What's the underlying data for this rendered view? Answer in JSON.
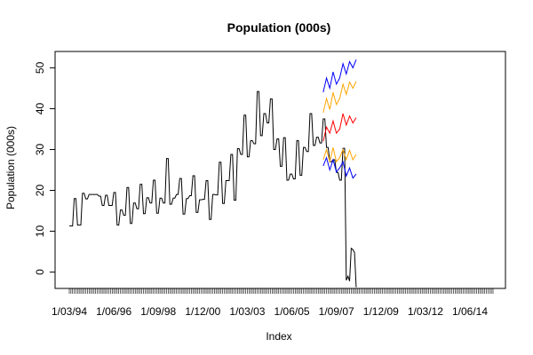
{
  "chart_data": {
    "type": "line",
    "title": "Population (000s)",
    "xlabel": "Index",
    "ylabel": "Population (000s)",
    "ylim": [
      -4,
      54
    ],
    "y_ticks": [
      0,
      10,
      20,
      30,
      40,
      50
    ],
    "x_ticks": [
      {
        "label": "1/03/94",
        "index": 1
      },
      {
        "label": "1/06/96",
        "index": 28
      },
      {
        "label": "1/09/98",
        "index": 55
      },
      {
        "label": "1/12/00",
        "index": 82
      },
      {
        "label": "1/03/03",
        "index": 109
      },
      {
        "label": "1/06/05",
        "index": 136
      },
      {
        "label": "1/09/07",
        "index": 163
      },
      {
        "label": "1/12/09",
        "index": 190
      },
      {
        "label": "1/03/12",
        "index": 217
      },
      {
        "label": "1/06/14",
        "index": 244
      }
    ],
    "x_range": [
      1,
      258
    ],
    "grid": false,
    "series": [
      {
        "color": "#000000",
        "points": [
          [
            1,
            11.3
          ],
          [
            2,
            11.3
          ],
          [
            3,
            11.3
          ],
          [
            4,
            18.0
          ],
          [
            5,
            18.0
          ],
          [
            6,
            11.5
          ],
          [
            7,
            11.5
          ],
          [
            8,
            11.5
          ],
          [
            9,
            19.3
          ],
          [
            10,
            19.3
          ],
          [
            11,
            17.9
          ],
          [
            12,
            17.9
          ],
          [
            13,
            19.0
          ],
          [
            14,
            19.0
          ],
          [
            15,
            19.0
          ],
          [
            16,
            19.0
          ],
          [
            17,
            19.0
          ],
          [
            18,
            19.0
          ],
          [
            19,
            18.6
          ],
          [
            20,
            18.6
          ],
          [
            21,
            16.3
          ],
          [
            22,
            16.3
          ],
          [
            23,
            18.8
          ],
          [
            24,
            18.8
          ],
          [
            25,
            16.3
          ],
          [
            26,
            16.3
          ],
          [
            27,
            16.3
          ],
          [
            28,
            19.5
          ],
          [
            29,
            19.5
          ],
          [
            30,
            11.5
          ],
          [
            31,
            11.5
          ],
          [
            32,
            15.2
          ],
          [
            33,
            15.2
          ],
          [
            34,
            13.9
          ],
          [
            35,
            13.9
          ],
          [
            36,
            20.7
          ],
          [
            37,
            20.7
          ],
          [
            38,
            11.9
          ],
          [
            39,
            11.9
          ],
          [
            40,
            16.9
          ],
          [
            41,
            16.9
          ],
          [
            42,
            15.5
          ],
          [
            43,
            15.5
          ],
          [
            44,
            21.5
          ],
          [
            45,
            21.5
          ],
          [
            46,
            14.3
          ],
          [
            47,
            14.3
          ],
          [
            48,
            18.2
          ],
          [
            49,
            18.2
          ],
          [
            50,
            16.9
          ],
          [
            51,
            16.9
          ],
          [
            52,
            22.5
          ],
          [
            53,
            22.5
          ],
          [
            54,
            14.4
          ],
          [
            55,
            14.4
          ],
          [
            56,
            18.1
          ],
          [
            57,
            18.1
          ],
          [
            58,
            16.9
          ],
          [
            59,
            16.9
          ],
          [
            60,
            27.8
          ],
          [
            61,
            27.8
          ],
          [
            62,
            16.6
          ],
          [
            63,
            16.6
          ],
          [
            64,
            18.1
          ],
          [
            65,
            18.1
          ],
          [
            66,
            19.0
          ],
          [
            67,
            19.0
          ],
          [
            68,
            22.9
          ],
          [
            69,
            22.9
          ],
          [
            70,
            14.2
          ],
          [
            71,
            14.2
          ],
          [
            72,
            18.0
          ],
          [
            73,
            18.0
          ],
          [
            74,
            18.7
          ],
          [
            75,
            18.7
          ],
          [
            76,
            23.6
          ],
          [
            77,
            23.6
          ],
          [
            78,
            14.6
          ],
          [
            79,
            14.6
          ],
          [
            80,
            17.7
          ],
          [
            81,
            17.7
          ],
          [
            82,
            17.8
          ],
          [
            83,
            17.8
          ],
          [
            84,
            22.4
          ],
          [
            85,
            22.4
          ],
          [
            86,
            12.9
          ],
          [
            87,
            12.9
          ],
          [
            88,
            19.0
          ],
          [
            89,
            19.0
          ],
          [
            90,
            18.9
          ],
          [
            91,
            18.9
          ],
          [
            92,
            26.9
          ],
          [
            93,
            26.9
          ],
          [
            94,
            16.8
          ],
          [
            95,
            16.8
          ],
          [
            96,
            22.4
          ],
          [
            97,
            22.4
          ],
          [
            98,
            22.4
          ],
          [
            99,
            28.8
          ],
          [
            100,
            28.8
          ],
          [
            101,
            17.6
          ],
          [
            102,
            17.6
          ],
          [
            103,
            30.2
          ],
          [
            104,
            30.2
          ],
          [
            105,
            28.8
          ],
          [
            106,
            28.8
          ],
          [
            107,
            38.4
          ],
          [
            108,
            38.4
          ],
          [
            109,
            28.2
          ],
          [
            110,
            28.2
          ],
          [
            111,
            32.2
          ],
          [
            112,
            32.2
          ],
          [
            113,
            31.4
          ],
          [
            114,
            31.4
          ],
          [
            115,
            44.2
          ],
          [
            116,
            44.2
          ],
          [
            117,
            33.4
          ],
          [
            118,
            33.4
          ],
          [
            119,
            38.8
          ],
          [
            120,
            38.8
          ],
          [
            121,
            36.5
          ],
          [
            122,
            36.5
          ],
          [
            123,
            42.4
          ],
          [
            124,
            42.4
          ],
          [
            125,
            30.0
          ],
          [
            126,
            30.0
          ],
          [
            127,
            32.6
          ],
          [
            128,
            32.6
          ],
          [
            129,
            25.9
          ],
          [
            130,
            25.9
          ],
          [
            131,
            32.9
          ],
          [
            132,
            32.9
          ],
          [
            133,
            22.5
          ],
          [
            134,
            22.5
          ],
          [
            135,
            24.0
          ],
          [
            136,
            24.0
          ],
          [
            137,
            22.8
          ],
          [
            138,
            22.8
          ],
          [
            139,
            32.2
          ],
          [
            140,
            32.2
          ],
          [
            141,
            23.7
          ],
          [
            142,
            23.7
          ],
          [
            143,
            30.5
          ],
          [
            144,
            30.5
          ],
          [
            145,
            29.5
          ],
          [
            146,
            29.5
          ],
          [
            147,
            38.8
          ],
          [
            148,
            38.8
          ],
          [
            149,
            31.0
          ],
          [
            150,
            31.0
          ],
          [
            151,
            33.0
          ],
          [
            152,
            33.0
          ],
          [
            153,
            31.6
          ],
          [
            154,
            31.6
          ],
          [
            155,
            37.5
          ],
          [
            156,
            37.5
          ],
          [
            157,
            30.5
          ],
          [
            158,
            30.5
          ],
          [
            159,
            27.0
          ],
          [
            160,
            27.0
          ],
          [
            161,
            27.5
          ],
          [
            162,
            27.5
          ],
          [
            163,
            24.4
          ],
          [
            164,
            24.4
          ],
          [
            165,
            22.5
          ],
          [
            166,
            22.5
          ],
          [
            167,
            30.3
          ],
          [
            168,
            30.3
          ],
          [
            169,
            -2.0
          ],
          [
            170,
            -1.0
          ],
          [
            171,
            -2.2
          ],
          [
            172,
            5.8
          ],
          [
            173,
            5.5
          ],
          [
            174,
            4.8
          ],
          [
            175,
            -3.7
          ]
        ]
      },
      {
        "color": "#ff0000",
        "points": [
          [
            155,
            32.0
          ],
          [
            157,
            35.5
          ],
          [
            159,
            34.0
          ],
          [
            161,
            37.0
          ],
          [
            163,
            34.0
          ],
          [
            165,
            35.0
          ],
          [
            167,
            38.8
          ],
          [
            169,
            36.0
          ],
          [
            171,
            38.2
          ],
          [
            173,
            36.5
          ],
          [
            175,
            37.8
          ]
        ]
      },
      {
        "color": "#ffa500",
        "points": [
          [
            155,
            39.0
          ],
          [
            157,
            42.5
          ],
          [
            159,
            39.8
          ],
          [
            161,
            44.0
          ],
          [
            163,
            41.0
          ],
          [
            165,
            42.5
          ],
          [
            167,
            46.0
          ],
          [
            169,
            43.5
          ],
          [
            171,
            46.5
          ],
          [
            173,
            45.0
          ],
          [
            175,
            46.7
          ]
        ]
      },
      {
        "color": "#ffa500",
        "points": [
          [
            155,
            27.5
          ],
          [
            157,
            30.0
          ],
          [
            159,
            27.0
          ],
          [
            161,
            30.5
          ],
          [
            163,
            27.0
          ],
          [
            165,
            28.0
          ],
          [
            167,
            30.0
          ],
          [
            169,
            27.5
          ],
          [
            171,
            29.8
          ],
          [
            173,
            27.5
          ],
          [
            175,
            28.8
          ]
        ]
      },
      {
        "color": "#0000ff",
        "points": [
          [
            155,
            44.0
          ],
          [
            157,
            47.5
          ],
          [
            159,
            45.0
          ],
          [
            161,
            49.0
          ],
          [
            163,
            46.0
          ],
          [
            165,
            47.5
          ],
          [
            167,
            51.0
          ],
          [
            169,
            48.5
          ],
          [
            171,
            51.5
          ],
          [
            173,
            50.0
          ],
          [
            175,
            52.0
          ]
        ]
      },
      {
        "color": "#0000ff",
        "points": [
          [
            155,
            26.0
          ],
          [
            157,
            28.0
          ],
          [
            159,
            25.0
          ],
          [
            161,
            27.5
          ],
          [
            163,
            24.5
          ],
          [
            165,
            25.5
          ],
          [
            167,
            27.0
          ],
          [
            169,
            23.5
          ],
          [
            171,
            25.5
          ],
          [
            173,
            23.0
          ],
          [
            175,
            24.0
          ]
        ]
      }
    ]
  }
}
